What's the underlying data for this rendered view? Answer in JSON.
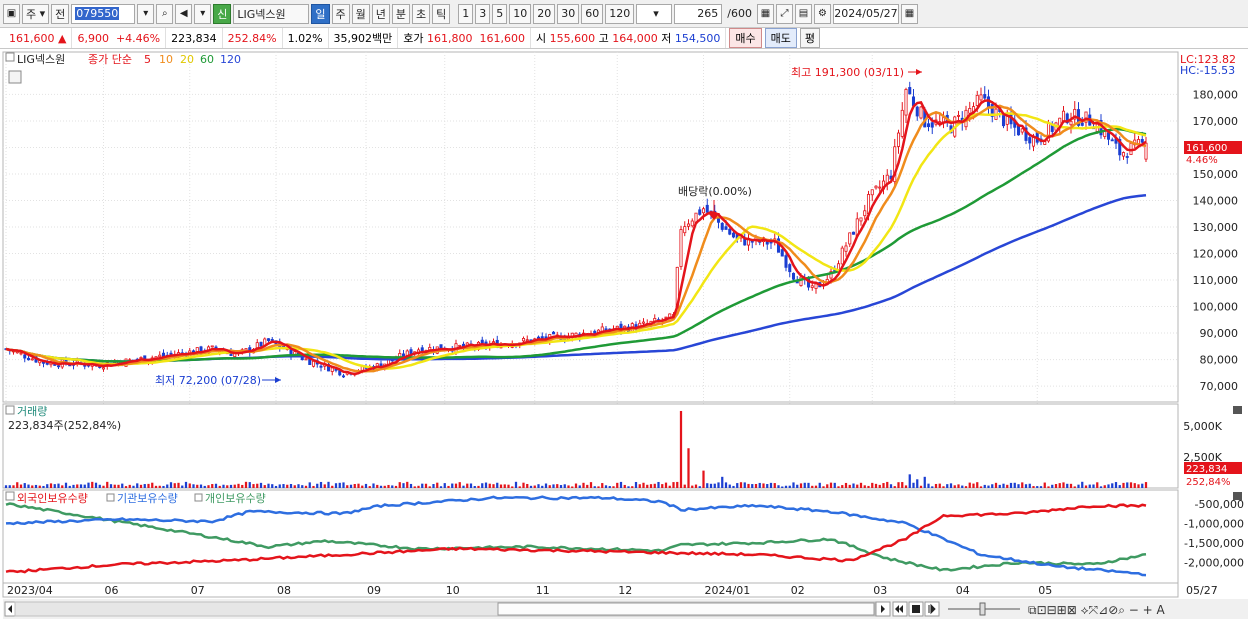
{
  "toolbar": {
    "market": "주",
    "prev": "전",
    "code": "079550",
    "badge": "신",
    "stock_name": "LIG넥스원",
    "periods": [
      "일",
      "주",
      "월",
      "년",
      "분",
      "초",
      "틱"
    ],
    "active_period": "일",
    "intervals": [
      "1",
      "3",
      "5",
      "10",
      "20",
      "30",
      "60",
      "120"
    ],
    "count": "265",
    "total": "/600",
    "date": "2024/05/27"
  },
  "info": {
    "price": "161,600",
    "change_arrow": "▲",
    "change": "6,900",
    "change_pct": "+4.46%",
    "volume": "223,834",
    "volume_ratio": "252.84%",
    "turnover": "1.02%",
    "amount": "35,902백만",
    "quote_label": "호가",
    "ask": "161,800",
    "bid": "161,600",
    "open_label": "시",
    "open": "155,600",
    "high_label": "고",
    "high": "164,000",
    "low_label": "저",
    "low": "154,500",
    "buy_label": "매수",
    "sell_label": "매도",
    "eval_label": "평"
  },
  "colors": {
    "up": "#e4141b",
    "down": "#1b3ed1",
    "ma5": "#e4141b",
    "ma10": "#f08c1c",
    "ma20": "#f2e614",
    "ma60": "#1f9a36",
    "ma120": "#2846d6",
    "foreign": "#e4141b",
    "institution": "#2e6ee0",
    "individual": "#3f9a62"
  },
  "chart_data": [
    {
      "type": "candlestick",
      "title": "LIG넥스원",
      "legend": [
        "종가 단순",
        "5",
        "10",
        "20",
        "60",
        "120"
      ],
      "lc_label": "LC:123.82",
      "hc_label": "HC:-15.53",
      "ylim": [
        64000,
        196000
      ],
      "y_ticks": [
        70000,
        80000,
        90000,
        100000,
        110000,
        120000,
        130000,
        140000,
        150000,
        160000,
        170000,
        180000
      ],
      "y_tick_labels": [
        "70,000",
        "80,000",
        "90,000",
        "100,000",
        "110,000",
        "120,000",
        "130,000",
        "140,000",
        "150,000",
        "160,000",
        "170,000",
        "180,000"
      ],
      "current_price_label": "161,600",
      "current_change_label": "4.46%",
      "annotations": {
        "high": "최고 191,300 (03/11)",
        "low": "최저 72,200 (07/28)",
        "dividend": "배당락(0.00%)"
      },
      "price_anchors": [
        [
          0,
          84000
        ],
        [
          10,
          79000
        ],
        [
          25,
          78000
        ],
        [
          40,
          81000
        ],
        [
          55,
          84000
        ],
        [
          62,
          82000
        ],
        [
          70,
          87000
        ],
        [
          80,
          80000
        ],
        [
          90,
          75000
        ],
        [
          100,
          78000
        ],
        [
          110,
          84000
        ],
        [
          125,
          85000
        ],
        [
          145,
          88000
        ],
        [
          160,
          91000
        ],
        [
          170,
          93000
        ],
        [
          178,
          96000
        ],
        [
          180,
          130000
        ],
        [
          186,
          137000
        ],
        [
          195,
          125000
        ],
        [
          205,
          124000
        ],
        [
          210,
          112000
        ],
        [
          215,
          106000
        ],
        [
          220,
          112000
        ],
        [
          230,
          140000
        ],
        [
          236,
          150000
        ],
        [
          240,
          182000
        ],
        [
          245,
          170000
        ],
        [
          252,
          168000
        ],
        [
          260,
          178000
        ],
        [
          268,
          168000
        ],
        [
          275,
          163000
        ],
        [
          283,
          172000
        ],
        [
          290,
          170000
        ],
        [
          297,
          158000
        ],
        [
          304,
          161600
        ]
      ],
      "ma_ends": {
        "ma60": 165000,
        "ma120": 142000
      }
    },
    {
      "type": "bar",
      "title": "거래량",
      "subtitle": "223,834주(252,84%)",
      "y_tick_labels": [
        "5,000K",
        "2,500K"
      ],
      "y_ticks": [
        5000,
        2500
      ],
      "ylim": [
        0,
        6600
      ],
      "last_value_label": "223,834",
      "last_ratio_label": "252,84%",
      "spikes": [
        [
          180,
          6200
        ],
        [
          182,
          3200
        ],
        [
          186,
          1400
        ],
        [
          191,
          900
        ],
        [
          241,
          1100
        ],
        [
          245,
          900
        ],
        [
          243,
          700
        ]
      ]
    },
    {
      "type": "line",
      "legend": [
        "외국인보유수량",
        "기관보유수량",
        "개인보유수량"
      ],
      "y_ticks": [
        -500000,
        -1000000,
        -1500000,
        -2000000
      ],
      "y_tick_labels": [
        "-500,000",
        "-1,000,000",
        "-1,500,000",
        "-2,000,000"
      ],
      "ylim": [
        -2500000,
        -250000
      ],
      "foreign": [
        [
          0,
          -2250000
        ],
        [
          30,
          -2050000
        ],
        [
          60,
          -1950000
        ],
        [
          90,
          -1800000
        ],
        [
          120,
          -1650000
        ],
        [
          150,
          -1700000
        ],
        [
          175,
          -1750000
        ],
        [
          200,
          -1800000
        ],
        [
          225,
          -1950000
        ],
        [
          240,
          -1400000
        ],
        [
          250,
          -800000
        ],
        [
          270,
          -750000
        ],
        [
          290,
          -550000
        ],
        [
          304,
          -550000
        ]
      ],
      "institution": [
        [
          0,
          -1000000
        ],
        [
          30,
          -900000
        ],
        [
          55,
          -950000
        ],
        [
          65,
          -700000
        ],
        [
          90,
          -750000
        ],
        [
          100,
          -550000
        ],
        [
          130,
          -350000
        ],
        [
          160,
          -350000
        ],
        [
          175,
          -450000
        ],
        [
          180,
          -650000
        ],
        [
          200,
          -550000
        ],
        [
          220,
          -700000
        ],
        [
          240,
          -1000000
        ],
        [
          260,
          -1800000
        ],
        [
          280,
          -2100000
        ],
        [
          304,
          -2300000
        ]
      ],
      "individual": [
        [
          0,
          -500000
        ],
        [
          20,
          -800000
        ],
        [
          55,
          -1350000
        ],
        [
          70,
          -1600000
        ],
        [
          85,
          -1450000
        ],
        [
          110,
          -1650000
        ],
        [
          140,
          -1600000
        ],
        [
          175,
          -1700000
        ],
        [
          180,
          -1550000
        ],
        [
          200,
          -1500000
        ],
        [
          220,
          -1400000
        ],
        [
          235,
          -1900000
        ],
        [
          250,
          -2200000
        ],
        [
          270,
          -2000000
        ],
        [
          290,
          -2050000
        ],
        [
          304,
          -1800000
        ]
      ]
    }
  ],
  "x_axis": {
    "labels": [
      "2023/04",
      "06",
      "07",
      "08",
      "09",
      "10",
      "11",
      "12",
      "2024/01",
      "02",
      "03",
      "04",
      "05"
    ],
    "label_positions": [
      0,
      26,
      49,
      72,
      96,
      117,
      141,
      163,
      186,
      209,
      231,
      253,
      275
    ],
    "end_label": "05/27"
  }
}
